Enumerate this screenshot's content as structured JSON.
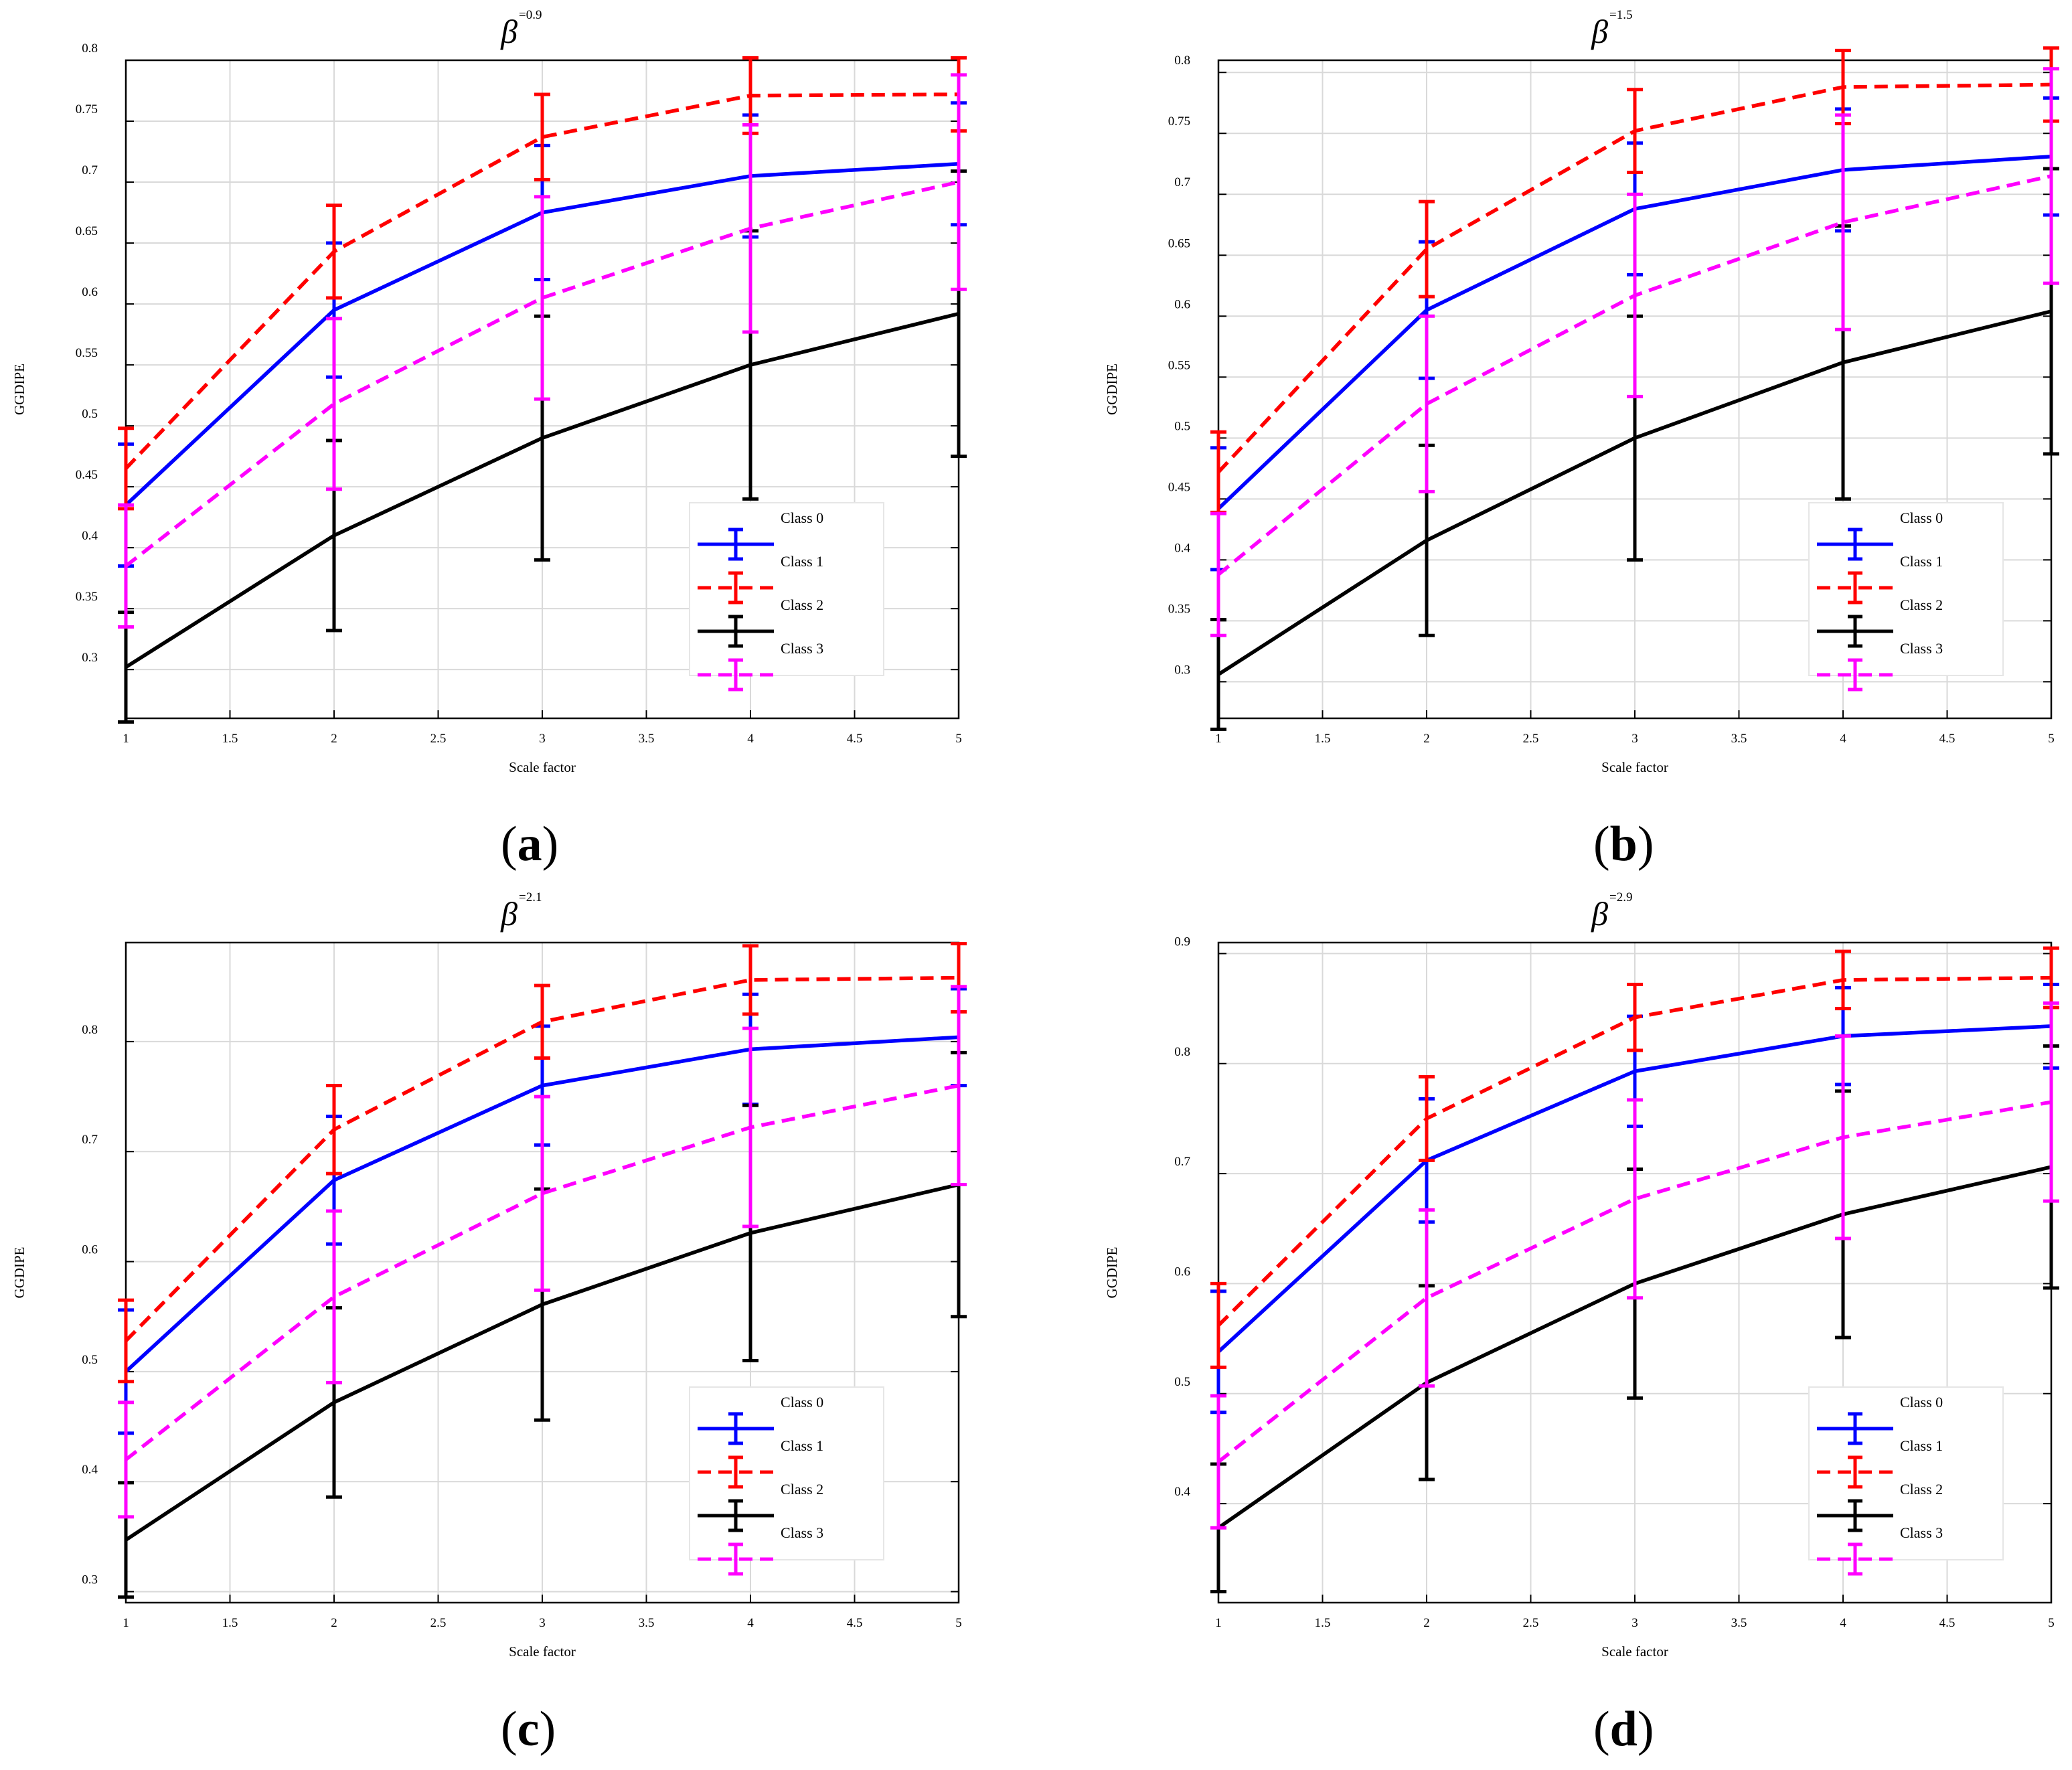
{
  "panel_labels": [
    "a",
    "b",
    "c",
    "d"
  ],
  "colors": {
    "class0": "#0000ff",
    "class1": "#ff0000",
    "class2": "#000000",
    "class3": "#ff00ff",
    "grid": "#d9d9d9",
    "axis": "#000000"
  },
  "chart_data": [
    {
      "type": "line",
      "title": "β=0.9",
      "title_symbol": "β",
      "title_exponent": "=0.9",
      "xlabel": "Scale factor",
      "ylabel": "GGDIPE",
      "x": [
        1,
        2,
        3,
        4,
        5
      ],
      "xlim": [
        1,
        5
      ],
      "ylim": [
        0.26,
        0.8
      ],
      "xticks": [
        1,
        1.5,
        2,
        2.5,
        3,
        3.5,
        4,
        4.5,
        5
      ],
      "xtick_labels": [
        "1",
        "1.5",
        "2",
        "2.5",
        "3",
        "3.5",
        "4",
        "4.5",
        "5"
      ],
      "yticks": [
        0.3,
        0.35,
        0.4,
        0.45,
        0.5,
        0.55,
        0.6,
        0.65,
        0.7,
        0.75,
        0.8
      ],
      "ytick_labels": [
        "0.3",
        "0.35",
        "0.4",
        "0.45",
        "0.5",
        "0.55",
        "0.6",
        "0.65",
        "0.7",
        "0.75",
        "0.8"
      ],
      "grid": true,
      "legend_position": "lower-right",
      "series": [
        {
          "name": "Class 0",
          "values": [
            0.435,
            0.595,
            0.675,
            0.705,
            0.715
          ],
          "errors": [
            0.05,
            0.055,
            0.055,
            0.05,
            0.05
          ],
          "style": "solid"
        },
        {
          "name": "Class 1",
          "values": [
            0.465,
            0.643,
            0.737,
            0.771,
            0.772
          ],
          "errors": [
            0.033,
            0.038,
            0.035,
            0.031,
            0.03
          ],
          "style": "dashed"
        },
        {
          "name": "Class 2",
          "values": [
            0.302,
            0.41,
            0.49,
            0.55,
            0.592
          ],
          "errors": [
            0.045,
            0.078,
            0.1,
            0.11,
            0.117
          ],
          "style": "solid"
        },
        {
          "name": "Class 3",
          "values": [
            0.385,
            0.518,
            0.605,
            0.662,
            0.7
          ],
          "errors": [
            0.05,
            0.07,
            0.083,
            0.085,
            0.088
          ],
          "style": "dashed"
        }
      ]
    },
    {
      "type": "line",
      "title": "β=1.5",
      "title_symbol": "β",
      "title_exponent": "=1.5",
      "xlabel": "Scale factor",
      "ylabel": "GGDIPE",
      "x": [
        1,
        2,
        3,
        4,
        5
      ],
      "xlim": [
        1,
        5
      ],
      "ylim": [
        0.27,
        0.81
      ],
      "xticks": [
        1,
        1.5,
        2,
        2.5,
        3,
        3.5,
        4,
        4.5,
        5
      ],
      "xtick_labels": [
        "1",
        "1.5",
        "2",
        "2.5",
        "3",
        "3.5",
        "4",
        "4.5",
        "5"
      ],
      "yticks": [
        0.3,
        0.35,
        0.4,
        0.45,
        0.5,
        0.55,
        0.6,
        0.65,
        0.7,
        0.75,
        0.8
      ],
      "ytick_labels": [
        "0.3",
        "0.35",
        "0.4",
        "0.45",
        "0.5",
        "0.55",
        "0.6",
        "0.65",
        "0.7",
        "0.75",
        "0.8"
      ],
      "grid": true,
      "legend_position": "lower-right",
      "series": [
        {
          "name": "Class 0",
          "values": [
            0.442,
            0.605,
            0.688,
            0.72,
            0.731
          ],
          "errors": [
            0.05,
            0.056,
            0.054,
            0.05,
            0.048
          ],
          "style": "solid"
        },
        {
          "name": "Class 1",
          "values": [
            0.472,
            0.655,
            0.752,
            0.788,
            0.79
          ],
          "errors": [
            0.033,
            0.039,
            0.034,
            0.03,
            0.03
          ],
          "style": "dashed"
        },
        {
          "name": "Class 2",
          "values": [
            0.306,
            0.416,
            0.5,
            0.562,
            0.604
          ],
          "errors": [
            0.045,
            0.078,
            0.1,
            0.112,
            0.117
          ],
          "style": "solid"
        },
        {
          "name": "Class 3",
          "values": [
            0.388,
            0.528,
            0.617,
            0.677,
            0.715
          ],
          "errors": [
            0.05,
            0.072,
            0.083,
            0.088,
            0.088
          ],
          "style": "dashed"
        }
      ]
    },
    {
      "type": "line",
      "title": "β=2.1",
      "title_symbol": "β",
      "title_exponent": "=2.1",
      "xlabel": "Scale factor",
      "ylabel": "GGDIPE",
      "x": [
        1,
        2,
        3,
        4,
        5
      ],
      "xlim": [
        1,
        5
      ],
      "ylim": [
        0.29,
        0.89
      ],
      "xticks": [
        1,
        1.5,
        2,
        2.5,
        3,
        3.5,
        4,
        4.5,
        5
      ],
      "xtick_labels": [
        "1",
        "1.5",
        "2",
        "2.5",
        "3",
        "3.5",
        "4",
        "4.5",
        "5"
      ],
      "yticks": [
        0.3,
        0.4,
        0.5,
        0.6,
        0.7,
        0.8
      ],
      "ytick_labels": [
        "0.3",
        "0.4",
        "0.5",
        "0.6",
        "0.7",
        "0.8"
      ],
      "grid": true,
      "legend_position": "lower-right",
      "series": [
        {
          "name": "Class 0",
          "values": [
            0.5,
            0.674,
            0.76,
            0.793,
            0.804
          ],
          "errors": [
            0.056,
            0.058,
            0.054,
            0.05,
            0.044
          ],
          "style": "solid"
        },
        {
          "name": "Class 1",
          "values": [
            0.528,
            0.72,
            0.818,
            0.856,
            0.858
          ],
          "errors": [
            0.037,
            0.04,
            0.033,
            0.031,
            0.031
          ],
          "style": "dashed"
        },
        {
          "name": "Class 2",
          "values": [
            0.347,
            0.472,
            0.561,
            0.626,
            0.67
          ],
          "errors": [
            0.052,
            0.086,
            0.105,
            0.116,
            0.12
          ],
          "style": "solid"
        },
        {
          "name": "Class 3",
          "values": [
            0.42,
            0.568,
            0.662,
            0.722,
            0.76
          ],
          "errors": [
            0.052,
            0.078,
            0.088,
            0.09,
            0.09
          ],
          "style": "dashed"
        }
      ]
    },
    {
      "type": "line",
      "title": "β=2.9",
      "title_symbol": "β",
      "title_exponent": "=2.9",
      "xlabel": "Scale factor",
      "ylabel": "GGDIPE",
      "x": [
        1,
        2,
        3,
        4,
        5
      ],
      "xlim": [
        1,
        5
      ],
      "ylim": [
        0.31,
        0.91
      ],
      "xticks": [
        1,
        1.5,
        2,
        2.5,
        3,
        3.5,
        4,
        4.5,
        5
      ],
      "xtick_labels": [
        "1",
        "1.5",
        "2",
        "2.5",
        "3",
        "3.5",
        "4",
        "4.5",
        "5"
      ],
      "yticks": [
        0.4,
        0.5,
        0.6,
        0.7,
        0.8,
        0.9
      ],
      "ytick_labels": [
        "0.4",
        "0.5",
        "0.6",
        "0.7",
        "0.8",
        "0.9"
      ],
      "grid": true,
      "legend_position": "lower-right",
      "series": [
        {
          "name": "Class 0",
          "values": [
            0.538,
            0.712,
            0.793,
            0.825,
            0.834
          ],
          "errors": [
            0.055,
            0.056,
            0.05,
            0.044,
            0.038
          ],
          "style": "solid"
        },
        {
          "name": "Class 1",
          "values": [
            0.562,
            0.75,
            0.842,
            0.876,
            0.878
          ],
          "errors": [
            0.038,
            0.038,
            0.03,
            0.026,
            0.027
          ],
          "style": "dashed"
        },
        {
          "name": "Class 2",
          "values": [
            0.378,
            0.51,
            0.6,
            0.663,
            0.706
          ],
          "errors": [
            0.058,
            0.088,
            0.104,
            0.112,
            0.11
          ],
          "style": "solid"
        },
        {
          "name": "Class 3",
          "values": [
            0.438,
            0.587,
            0.677,
            0.733,
            0.765
          ],
          "errors": [
            0.06,
            0.08,
            0.09,
            0.092,
            0.09
          ],
          "style": "dashed"
        }
      ]
    }
  ]
}
